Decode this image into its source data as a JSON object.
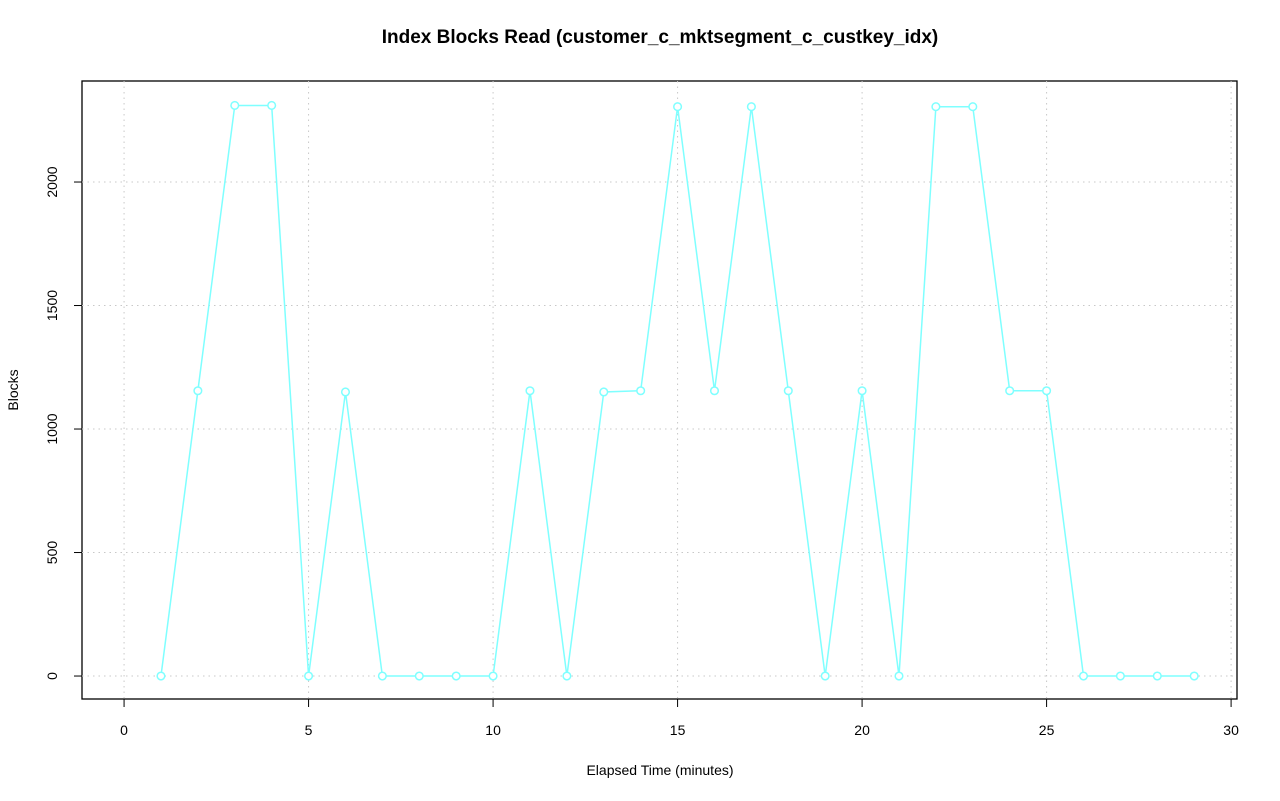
{
  "chart_data": {
    "type": "line",
    "title": "Index Blocks Read (customer_c_mktsegment_c_custkey_idx)",
    "x_label": "Elapsed Time (minutes)",
    "y_label": "Blocks",
    "x": [
      1,
      2,
      3,
      4,
      5,
      6,
      7,
      8,
      9,
      10,
      11,
      12,
      13,
      14,
      15,
      16,
      17,
      18,
      19,
      20,
      21,
      22,
      23,
      24,
      25,
      26,
      27,
      28,
      29
    ],
    "series": [
      {
        "name": "Blocks",
        "color": "#7fffff",
        "values": [
          0,
          1155,
          2310,
          2310,
          0,
          1150,
          0,
          0,
          0,
          0,
          1155,
          0,
          1150,
          1155,
          2305,
          1155,
          2305,
          1155,
          0,
          1155,
          0,
          2305,
          2305,
          1155,
          1155,
          0,
          0,
          0,
          0
        ]
      }
    ],
    "xlim": [
      -1.14,
      30.16
    ],
    "ylim": [
      -93,
      2409
    ],
    "xticks": [
      0,
      5,
      10,
      15,
      20,
      25,
      30
    ],
    "yticks": [
      0,
      500,
      1000,
      1500,
      2000
    ],
    "grid": true,
    "markers": "open-circle"
  }
}
